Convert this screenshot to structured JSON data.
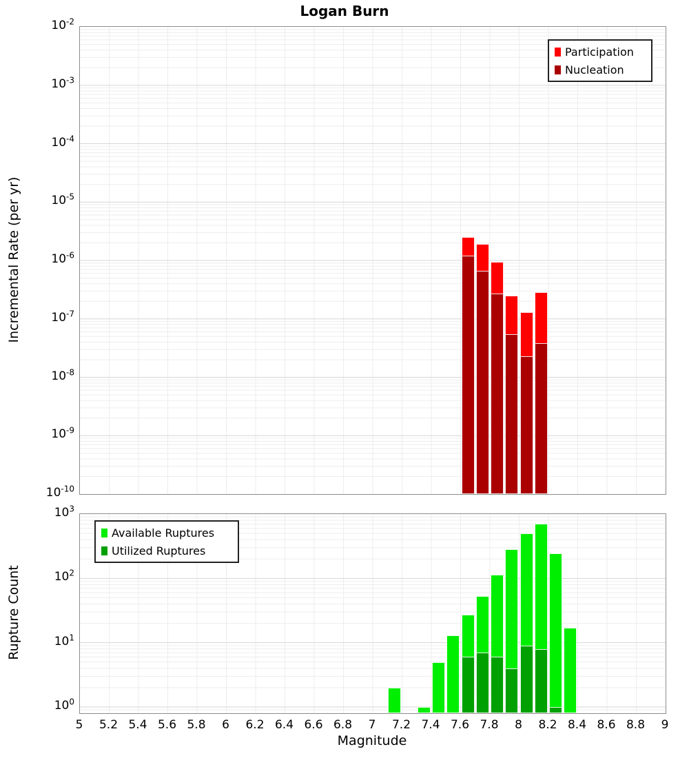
{
  "title": "Logan Burn",
  "axes": {
    "x_label": "Magnitude",
    "top_y_label": "Incremental Rate (per yr)",
    "bottom_y_label": "Rupture Count",
    "x_tick_labels": [
      "5",
      "5.2",
      "5.4",
      "5.6",
      "5.8",
      "6",
      "6.2",
      "6.4",
      "6.6",
      "6.8",
      "7",
      "7.2",
      "7.4",
      "7.6",
      "7.8",
      "8",
      "8.2",
      "8.4",
      "8.6",
      "8.8",
      "9"
    ],
    "top_y_tick_exponents": [
      -2,
      -3,
      -4,
      -5,
      -6,
      -7,
      -8,
      -9,
      -10
    ],
    "bottom_y_tick_exponents": [
      3,
      2,
      1,
      0
    ]
  },
  "colors": {
    "participation": "#FF0000",
    "nucleation": "#AA0000",
    "available": "#00EE00",
    "utilized": "#00A000",
    "grid_minor": "#EDEDED",
    "grid_major": "#D6D6D6",
    "panel_border": "#8C8C8C"
  },
  "legend_top": {
    "items": [
      {
        "label": "Participation",
        "color": "#FF0000"
      },
      {
        "label": "Nucleation",
        "color": "#AA0000"
      }
    ]
  },
  "legend_bottom": {
    "items": [
      {
        "label": "Available Ruptures",
        "color": "#00EE00"
      },
      {
        "label": "Utilized Ruptures",
        "color": "#00A000"
      }
    ]
  },
  "chart_data": [
    {
      "type": "bar",
      "title": "Logan Burn",
      "xlabel": "Magnitude",
      "ylabel": "Incremental Rate (per yr)",
      "yscale": "log",
      "xlim": [
        5,
        9
      ],
      "ylim": [
        1e-10,
        0.01
      ],
      "bin_width": 0.1,
      "grid": true,
      "legend_position": "top-right",
      "x": [
        7.65,
        7.75,
        7.85,
        7.95,
        8.05,
        8.15
      ],
      "series": [
        {
          "name": "Participation",
          "color": "#FF0000",
          "values": [
            2.5e-06,
            1.9e-06,
            9.5e-07,
            2.5e-07,
            1.3e-07,
            2.9e-07
          ]
        },
        {
          "name": "Nucleation",
          "color": "#AA0000",
          "values": [
            1.2e-06,
            6.6e-07,
            2.7e-07,
            5.5e-08,
            2.3e-08,
            3.8e-08
          ]
        }
      ]
    },
    {
      "type": "bar",
      "title": "",
      "xlabel": "Magnitude",
      "ylabel": "Rupture Count",
      "yscale": "log",
      "xlim": [
        5,
        9
      ],
      "ylim": [
        0.8,
        1000
      ],
      "bin_width": 0.1,
      "grid": true,
      "legend_position": "top-left",
      "x": [
        7.15,
        7.35,
        7.45,
        7.55,
        7.65,
        7.75,
        7.85,
        7.95,
        8.05,
        8.15,
        8.25,
        8.35
      ],
      "series": [
        {
          "name": "Available Ruptures",
          "color": "#00EE00",
          "values": [
            2,
            1,
            5,
            13,
            27,
            53,
            115,
            285,
            500,
            700,
            245,
            17
          ]
        },
        {
          "name": "Utilized Ruptures",
          "color": "#00A000",
          "values": [
            0,
            0,
            0,
            0,
            6,
            7,
            6,
            4,
            9,
            8,
            1,
            0
          ]
        }
      ]
    }
  ]
}
